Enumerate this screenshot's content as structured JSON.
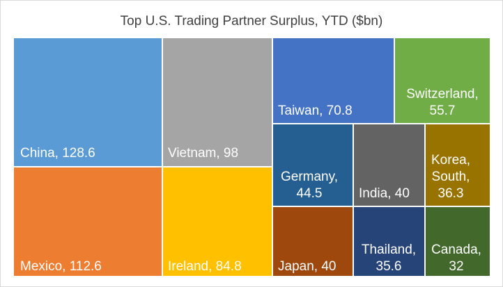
{
  "chart_data": {
    "type": "treemap",
    "title": "Top U.S. Trading Partner Surplus, YTD ($bn)",
    "categories": [
      "China",
      "Mexico",
      "Vietnam",
      "Ireland",
      "Taiwan",
      "Switzerland",
      "Germany",
      "India",
      "Korea, South",
      "Japan",
      "Thailand",
      "Canada"
    ],
    "values": [
      128.6,
      112.6,
      98,
      84.8,
      70.8,
      55.7,
      44.5,
      40,
      36.3,
      40,
      35.6,
      32
    ],
    "colors": [
      "#5b9bd5",
      "#ed7d31",
      "#a5a5a5",
      "#ffc000",
      "#4472c4",
      "#70ad47",
      "#255e91",
      "#636363",
      "#997300",
      "#9e480e",
      "#264478",
      "#43682b"
    ],
    "labels": [
      [
        "China, 128.6"
      ],
      [
        "Mexico, 112.6"
      ],
      [
        "Vietnam, 98"
      ],
      [
        "Ireland, 84.8"
      ],
      [
        "Taiwan, 70.8"
      ],
      [
        "Switzerland,",
        "55.7"
      ],
      [
        "Germany,",
        "44.5"
      ],
      [
        "India, 40"
      ],
      [
        "Korea,",
        "South,",
        "36.3"
      ],
      [
        "Japan, 40"
      ],
      [
        "Thailand,",
        "35.6"
      ],
      [
        "Canada,",
        "32"
      ]
    ]
  }
}
